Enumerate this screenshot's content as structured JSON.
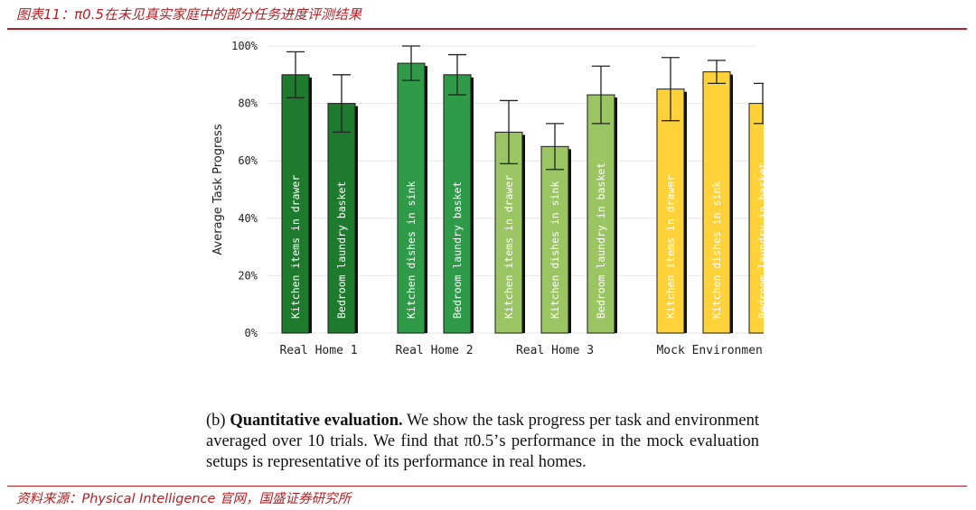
{
  "header": {
    "title": "图表11：π0.5在未见真实家庭中的部分任务进度评测结果"
  },
  "chart_data": {
    "type": "bar",
    "ylabel": "Average Task Progress",
    "ylim": [
      0,
      100
    ],
    "yticks": [
      "0%",
      "20%",
      "40%",
      "60%",
      "80%",
      "100%"
    ],
    "grid": true,
    "groups": [
      {
        "name": "Real Home 1",
        "color": "#1e7b2e",
        "bars": [
          {
            "label": "Kitchen items in drawer",
            "value": 90,
            "err_low": 82,
            "err_high": 98
          },
          {
            "label": "Bedroom laundry basket",
            "value": 80,
            "err_low": 70,
            "err_high": 90
          }
        ]
      },
      {
        "name": "Real Home 2",
        "color": "#2f9a47",
        "bars": [
          {
            "label": "Kitchen dishes in sink",
            "value": 94,
            "err_low": 88,
            "err_high": 100
          },
          {
            "label": "Bedroom laundry basket",
            "value": 90,
            "err_low": 83,
            "err_high": 97
          }
        ]
      },
      {
        "name": "Real Home 3",
        "color": "#9bc463",
        "bars": [
          {
            "label": "Kitchen items in drawer",
            "value": 70,
            "err_low": 59,
            "err_high": 81
          },
          {
            "label": "Kitchen dishes in sink",
            "value": 65,
            "err_low": 57,
            "err_high": 73
          },
          {
            "label": "Bedroom laundry in basket",
            "value": 83,
            "err_low": 73,
            "err_high": 93
          }
        ]
      },
      {
        "name": "Mock Environments",
        "color": "#ffd23a",
        "bars": [
          {
            "label": "Kitchen items in drawer",
            "value": 85,
            "err_low": 74,
            "err_high": 96
          },
          {
            "label": "Kitchen dishes in sink",
            "value": 91,
            "err_low": 87,
            "err_high": 95
          },
          {
            "label": "Bedroom laundry in basket",
            "value": 80,
            "err_low": 73,
            "err_high": 87
          }
        ]
      }
    ]
  },
  "caption": {
    "prefix": "(b) ",
    "bold": "Quantitative evaluation.",
    "text": " We show the task progress per task and environment averaged over 10 trials. We find that π0.5’s performance in the mock evaluation setups is representative of its performance in real homes."
  },
  "footer": {
    "source": "资料来源：Physical Intelligence 官网，国盛证券研究所"
  }
}
